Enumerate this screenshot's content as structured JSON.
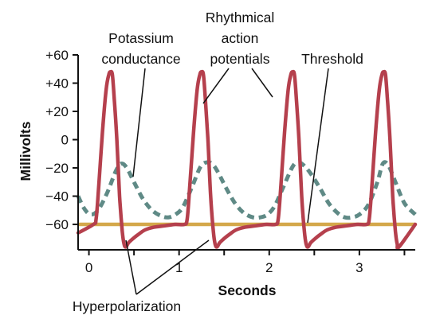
{
  "chart_data": {
    "type": "line",
    "title": "",
    "xlabel": "Seconds",
    "ylabel": "Millivolts",
    "xlim": [
      -0.12,
      3.62
    ],
    "ylim": [
      -78,
      60
    ],
    "x_ticks": [
      0,
      0.5,
      1,
      1.5,
      2,
      2.5,
      3,
      3.5
    ],
    "x_tick_labels": [
      {
        "value": 0,
        "label": "0"
      },
      {
        "value": 1,
        "label": "1"
      },
      {
        "value": 2,
        "label": "2"
      },
      {
        "value": 3,
        "label": "3"
      }
    ],
    "y_ticks": [
      {
        "value": 60,
        "label": "+60"
      },
      {
        "value": 40,
        "label": "+40"
      },
      {
        "value": 20,
        "label": "+20"
      },
      {
        "value": 0,
        "label": "0"
      },
      {
        "value": -20,
        "label": "−20"
      },
      {
        "value": -40,
        "label": "−40"
      },
      {
        "value": -60,
        "label": "−60"
      }
    ],
    "grid": false,
    "colors": {
      "action_potential": "#b5404d",
      "potassium_conductance": "#5f8a86",
      "threshold": "#d4a84b",
      "axis": "#111111"
    },
    "series": [
      {
        "key": "action_potential",
        "style": "solid",
        "x": [
          -0.12,
          0.05,
          0.08,
          0.11,
          0.15,
          0.19,
          0.22,
          0.24,
          0.26,
          0.28,
          0.31,
          0.34,
          0.37,
          0.39,
          0.41,
          0.44,
          0.49,
          0.55,
          0.62,
          0.72,
          0.84,
          0.96,
          1.06,
          1.09,
          1.12,
          1.16,
          1.2,
          1.23,
          1.25,
          1.27,
          1.29,
          1.32,
          1.35,
          1.38,
          1.4,
          1.42,
          1.45,
          1.5,
          1.56,
          1.63,
          1.73,
          1.85,
          1.97,
          2.07,
          2.1,
          2.13,
          2.17,
          2.21,
          2.24,
          2.26,
          2.28,
          2.3,
          2.33,
          2.36,
          2.39,
          2.41,
          2.43,
          2.46,
          2.51,
          2.57,
          2.64,
          2.74,
          2.86,
          2.98,
          3.08,
          3.11,
          3.14,
          3.18,
          3.22,
          3.25,
          3.27,
          3.29,
          3.31,
          3.34,
          3.37,
          3.4,
          3.42,
          3.44,
          3.62
        ],
        "y": [
          -66,
          -60,
          -56,
          -32,
          5,
          35,
          46,
          48,
          46,
          30,
          0,
          -40,
          -65,
          -74,
          -76,
          -73,
          -70,
          -67,
          -64,
          -62,
          -61,
          -60,
          -60,
          -56,
          -32,
          5,
          35,
          46,
          48,
          46,
          30,
          0,
          -40,
          -65,
          -74,
          -76,
          -73,
          -70,
          -67,
          -64,
          -62,
          -61,
          -60,
          -60,
          -56,
          -32,
          5,
          35,
          46,
          48,
          46,
          30,
          0,
          -40,
          -65,
          -74,
          -76,
          -73,
          -70,
          -67,
          -64,
          -62,
          -61,
          -60,
          -60,
          -56,
          -32,
          5,
          35,
          46,
          48,
          46,
          30,
          0,
          -40,
          -65,
          -74,
          -76,
          -60
        ]
      },
      {
        "key": "potassium_conductance",
        "style": "dashed",
        "x": [
          -0.12,
          -0.05,
          0.02,
          0.1,
          0.2,
          0.3,
          0.36,
          0.42,
          0.5,
          0.6,
          0.7,
          0.8,
          0.88,
          0.96,
          1.04,
          1.14,
          1.24,
          1.32,
          1.38,
          1.44,
          1.52,
          1.62,
          1.72,
          1.82,
          1.9,
          1.98,
          2.06,
          2.16,
          2.26,
          2.32,
          2.38,
          2.46,
          2.56,
          2.66,
          2.76,
          2.84,
          2.92,
          3.0,
          3.1,
          3.2,
          3.26,
          3.32,
          3.4,
          3.5,
          3.62
        ],
        "y": [
          -40,
          -49,
          -53,
          -50,
          -38,
          -22,
          -17,
          -20,
          -30,
          -42,
          -50,
          -54,
          -55,
          -53,
          -48,
          -34,
          -19,
          -16,
          -18,
          -24,
          -34,
          -45,
          -52,
          -55,
          -55,
          -53,
          -47,
          -33,
          -19,
          -16,
          -18,
          -24,
          -34,
          -45,
          -52,
          -55,
          -55,
          -53,
          -46,
          -30,
          -17,
          -18,
          -30,
          -45,
          -53
        ]
      },
      {
        "key": "threshold",
        "style": "solid",
        "x": [
          -0.12,
          3.62
        ],
        "y": [
          -60,
          -60
        ]
      }
    ],
    "annotations": [
      {
        "key": "potassium",
        "lines": [
          "Potassium",
          "conductance"
        ]
      },
      {
        "key": "rhythmical",
        "lines": [
          "Rhythmical",
          "action",
          "potentials"
        ]
      },
      {
        "key": "threshold",
        "lines": [
          "Threshold"
        ]
      },
      {
        "key": "hyperpolarization",
        "lines": [
          "Hyperpolarization"
        ]
      }
    ]
  }
}
